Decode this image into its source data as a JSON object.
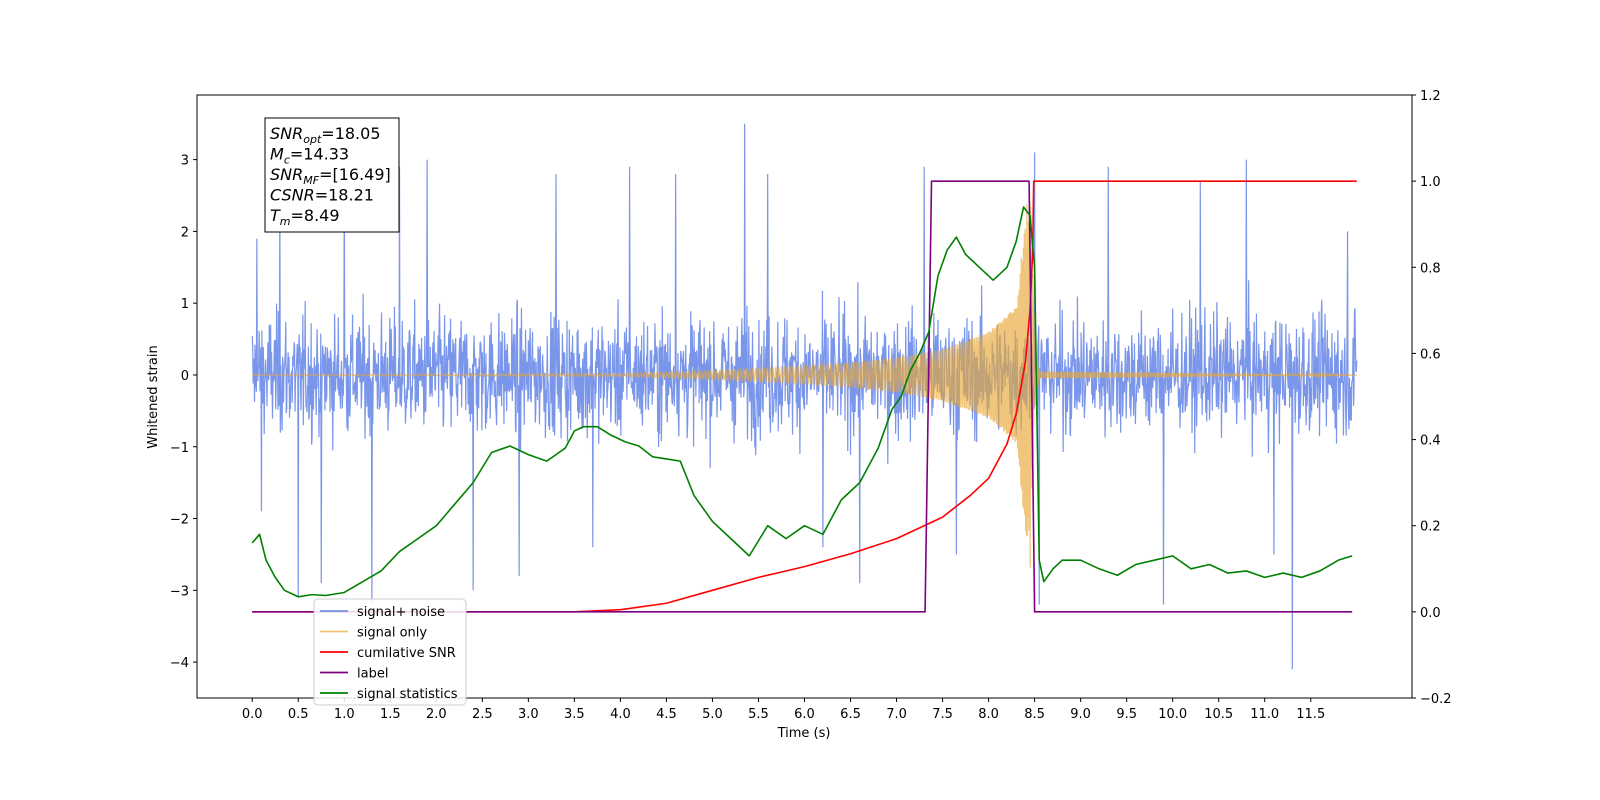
{
  "chart_data": {
    "type": "line",
    "title": "",
    "xlabel": "Time (s)",
    "ylabel": "Whitened strain",
    "xlim": [
      -0.6,
      12.6
    ],
    "ylim": [
      -4.5,
      3.9
    ],
    "y2lim": [
      -0.2,
      1.2
    ],
    "x_ticks": [
      0.0,
      0.5,
      1.0,
      1.5,
      2.0,
      2.5,
      3.0,
      3.5,
      4.0,
      4.5,
      5.0,
      5.5,
      6.0,
      6.5,
      7.0,
      7.5,
      8.0,
      8.5,
      9.0,
      9.5,
      10.0,
      10.5,
      11.0,
      11.5
    ],
    "x_tick_labels": [
      "0.0",
      "0.5",
      "1.0",
      "1.5",
      "2.0",
      "2.5",
      "3.0",
      "3.5",
      "4.0",
      "4.5",
      "5.0",
      "5.5",
      "6.0",
      "6.5",
      "7.0",
      "7.5",
      "8.0",
      "8.5",
      "9.0",
      "9.5",
      "10.0",
      "10.5",
      "11.0",
      "11.5"
    ],
    "y_ticks": [
      3,
      2,
      1,
      0,
      -1,
      -2,
      -3,
      -4
    ],
    "y_tick_labels": [
      "3",
      "2",
      "1",
      "0",
      "−1",
      "−2",
      "−3",
      "−4"
    ],
    "y2_ticks": [
      1.2,
      1.0,
      0.8,
      0.6,
      0.4,
      0.2,
      0.0,
      -0.2
    ],
    "y2_tick_labels": [
      "1.2",
      "1.0",
      "0.8",
      "0.6",
      "0.4",
      "0.2",
      "0.0",
      "−0.2"
    ],
    "grid": false,
    "legend_placement": "lower-left",
    "annotation": {
      "lines": [
        {
          "sym": "SNR",
          "sub": "opt",
          "value": "=18.05"
        },
        {
          "sym": "M",
          "sub": "c",
          "value": "=14.33"
        },
        {
          "sym": "SNR",
          "sub": "MF",
          "value": "=[16.49]"
        },
        {
          "sym": "CSNR",
          "sub": "",
          "value": "=18.21"
        },
        {
          "sym": "T",
          "sub": "m",
          "value": "=8.49"
        }
      ]
    },
    "series": [
      {
        "name": "signal+ noise",
        "axis": "left",
        "color": "#4169e1",
        "style": "dense noise, envelope approx ±1.3 with spikes to ±3.5",
        "x_range": [
          0.0,
          12.0
        ],
        "spikes": [
          [
            0.05,
            1.9
          ],
          [
            0.1,
            -1.9
          ],
          [
            0.3,
            2.8
          ],
          [
            0.5,
            -3.1
          ],
          [
            0.75,
            -2.9
          ],
          [
            1.0,
            2.7
          ],
          [
            1.3,
            -3.2
          ],
          [
            1.6,
            2.9
          ],
          [
            1.9,
            3.0
          ],
          [
            2.4,
            -3.0
          ],
          [
            2.9,
            -2.8
          ],
          [
            3.3,
            2.8
          ],
          [
            3.7,
            -2.4
          ],
          [
            4.1,
            2.9
          ],
          [
            4.6,
            2.8
          ],
          [
            5.35,
            3.5
          ],
          [
            5.6,
            2.8
          ],
          [
            6.2,
            -2.4
          ],
          [
            6.6,
            -2.9
          ],
          [
            7.3,
            2.9
          ],
          [
            7.65,
            -2.5
          ],
          [
            8.5,
            3.1
          ],
          [
            8.55,
            -3.2
          ],
          [
            9.3,
            2.9
          ],
          [
            9.9,
            -3.2
          ],
          [
            10.3,
            2.7
          ],
          [
            10.8,
            3.0
          ],
          [
            11.1,
            -2.5
          ],
          [
            11.3,
            -4.1
          ],
          [
            11.9,
            2.0
          ]
        ]
      },
      {
        "name": "signal only",
        "axis": "left",
        "color": "#e8a838",
        "style": "chirp oscillation, amplitude grows toward merger at 8.49 s",
        "amplitude_points": [
          [
            0.0,
            0.0
          ],
          [
            4.0,
            0.02
          ],
          [
            5.0,
            0.06
          ],
          [
            6.0,
            0.12
          ],
          [
            6.5,
            0.17
          ],
          [
            7.0,
            0.24
          ],
          [
            7.5,
            0.36
          ],
          [
            8.0,
            0.6
          ],
          [
            8.3,
            0.95
          ],
          [
            8.45,
            2.8
          ],
          [
            8.5,
            0.5
          ],
          [
            8.55,
            0.05
          ],
          [
            12.0,
            0.0
          ]
        ]
      },
      {
        "name": "cumilative SNR",
        "axis": "right",
        "color": "#ff0000",
        "x": [
          0.0,
          3.5,
          4.0,
          4.5,
          5.0,
          5.5,
          6.0,
          6.5,
          7.0,
          7.5,
          7.8,
          8.0,
          8.2,
          8.3,
          8.4,
          8.45,
          8.48,
          8.49,
          12.0
        ],
        "y": [
          0.0,
          0.0,
          0.005,
          0.02,
          0.05,
          0.08,
          0.105,
          0.135,
          0.17,
          0.22,
          0.27,
          0.31,
          0.39,
          0.46,
          0.58,
          0.7,
          0.84,
          1.0,
          1.0
        ]
      },
      {
        "name": "label",
        "axis": "right",
        "color": "#800080",
        "x": [
          0.0,
          7.31,
          7.38,
          8.44,
          8.5,
          11.95
        ],
        "y": [
          0.0,
          0.0,
          1.0,
          1.0,
          0.0,
          0.0
        ]
      },
      {
        "name": "signal statistics",
        "axis": "right",
        "color": "#008000",
        "x": [
          0.0,
          0.08,
          0.15,
          0.25,
          0.35,
          0.5,
          0.65,
          0.8,
          1.0,
          1.2,
          1.4,
          1.6,
          1.8,
          2.0,
          2.2,
          2.4,
          2.6,
          2.8,
          3.0,
          3.2,
          3.4,
          3.5,
          3.6,
          3.75,
          3.9,
          4.05,
          4.2,
          4.35,
          4.5,
          4.65,
          4.8,
          5.0,
          5.2,
          5.4,
          5.6,
          5.8,
          6.0,
          6.2,
          6.4,
          6.6,
          6.8,
          6.95,
          7.05,
          7.15,
          7.25,
          7.35,
          7.45,
          7.55,
          7.65,
          7.75,
          7.9,
          8.05,
          8.2,
          8.3,
          8.38,
          8.45,
          8.5,
          8.55,
          8.6,
          8.7,
          8.8,
          9.0,
          9.2,
          9.4,
          9.6,
          9.8,
          10.0,
          10.2,
          10.4,
          10.6,
          10.8,
          11.0,
          11.2,
          11.4,
          11.6,
          11.8,
          11.95
        ],
        "y": [
          0.16,
          0.18,
          0.12,
          0.08,
          0.05,
          0.035,
          0.04,
          0.038,
          0.045,
          0.07,
          0.095,
          0.14,
          0.17,
          0.2,
          0.25,
          0.3,
          0.37,
          0.385,
          0.365,
          0.35,
          0.38,
          0.42,
          0.43,
          0.43,
          0.41,
          0.395,
          0.385,
          0.36,
          0.355,
          0.35,
          0.27,
          0.21,
          0.17,
          0.13,
          0.2,
          0.17,
          0.2,
          0.18,
          0.26,
          0.3,
          0.38,
          0.47,
          0.5,
          0.56,
          0.6,
          0.65,
          0.78,
          0.84,
          0.87,
          0.83,
          0.8,
          0.77,
          0.8,
          0.86,
          0.94,
          0.92,
          0.8,
          0.12,
          0.07,
          0.1,
          0.12,
          0.12,
          0.1,
          0.085,
          0.11,
          0.12,
          0.13,
          0.1,
          0.11,
          0.09,
          0.095,
          0.08,
          0.09,
          0.08,
          0.095,
          0.12,
          0.13
        ]
      }
    ]
  }
}
